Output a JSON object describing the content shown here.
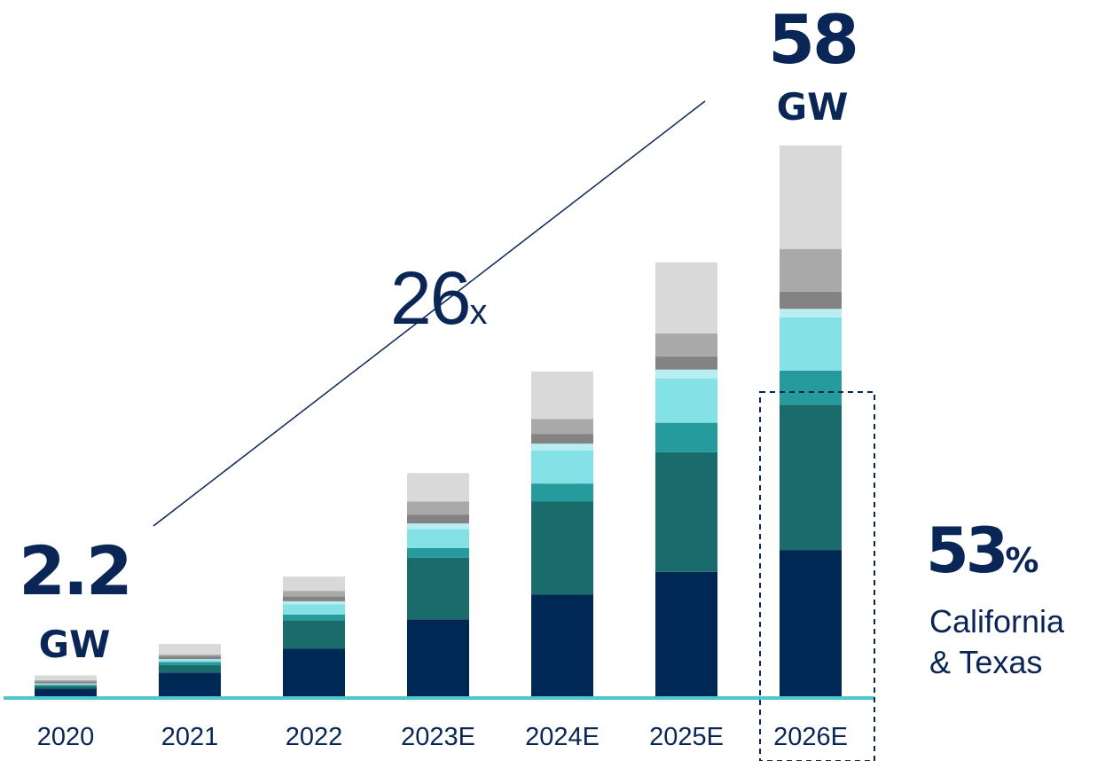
{
  "chart_data": {
    "type": "bar",
    "stacked": true,
    "categories": [
      "2020",
      "2021",
      "2022",
      "2023E",
      "2024E",
      "2025E",
      "2026E"
    ],
    "ylim": [
      0,
      58
    ],
    "grid": false,
    "legend": "none",
    "series": [
      {
        "color": "#002855",
        "values": [
          0.8,
          2.5,
          5.0,
          8.1,
          10.7,
          13.1,
          15.4
        ]
      },
      {
        "color": "#1a6b6b",
        "values": [
          0.3,
          0.8,
          3.0,
          6.5,
          9.8,
          12.6,
          15.3
        ]
      },
      {
        "color": "#259b9e",
        "values": [
          0.1,
          0.3,
          0.6,
          1.0,
          1.9,
          3.1,
          3.6
        ]
      },
      {
        "color": "#84e1e6",
        "values": [
          0.1,
          0.2,
          1.1,
          2.0,
          3.5,
          4.7,
          5.6
        ]
      },
      {
        "color": "#b8eef2",
        "values": [
          0.05,
          0.1,
          0.3,
          0.6,
          0.7,
          0.9,
          0.9
        ]
      },
      {
        "color": "#838383",
        "values": [
          0.2,
          0.3,
          0.5,
          0.9,
          1.0,
          1.4,
          1.8
        ]
      },
      {
        "color": "#a9a9a9",
        "values": [
          0.15,
          0.2,
          0.6,
          1.4,
          1.6,
          2.4,
          4.5
        ]
      },
      {
        "color": "#d9d9d9",
        "values": [
          0.5,
          1.1,
          1.5,
          3.0,
          5.0,
          7.5,
          10.9
        ]
      }
    ]
  },
  "callouts": {
    "start_value": "2.2",
    "start_unit": "GW",
    "end_value": "58",
    "end_unit": "GW",
    "growth_number": "26",
    "growth_suffix": "x",
    "share_number": "53",
    "share_suffix": "%",
    "share_label_line1": "California",
    "share_label_line2": "& Texas"
  },
  "colors": {
    "navy": "#0a2657",
    "baseline": "#4fc7cf",
    "highlight_box": "#0a2657"
  }
}
